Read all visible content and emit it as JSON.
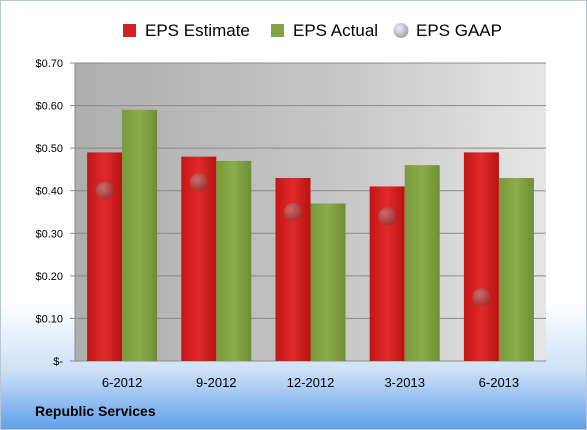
{
  "company": "Republic Services",
  "chart_data": {
    "type": "bar",
    "categories": [
      "6-2012",
      "9-2012",
      "12-2012",
      "3-2013",
      "6-2013"
    ],
    "series": [
      {
        "name": "EPS Estimate",
        "type": "bar",
        "color": "#d42020",
        "values": [
          0.49,
          0.48,
          0.43,
          0.41,
          0.49
        ]
      },
      {
        "name": "EPS Actual",
        "type": "bar",
        "color": "#84a444",
        "values": [
          0.59,
          0.47,
          0.37,
          0.46,
          0.43
        ]
      },
      {
        "name": "EPS GAAP",
        "type": "scatter",
        "color": "#b8b8c0",
        "values": [
          0.4,
          0.42,
          0.35,
          0.34,
          0.15
        ]
      }
    ],
    "ylim": [
      0,
      0.7
    ],
    "yticks": [
      0,
      0.1,
      0.2,
      0.3,
      0.4,
      0.5,
      0.6,
      0.7
    ],
    "ytick_labels": [
      "$-",
      "$0.10",
      "$0.20",
      "$0.30",
      "$0.40",
      "$0.50",
      "$0.60",
      "$0.70"
    ],
    "grid": true,
    "legend_position": "top"
  }
}
